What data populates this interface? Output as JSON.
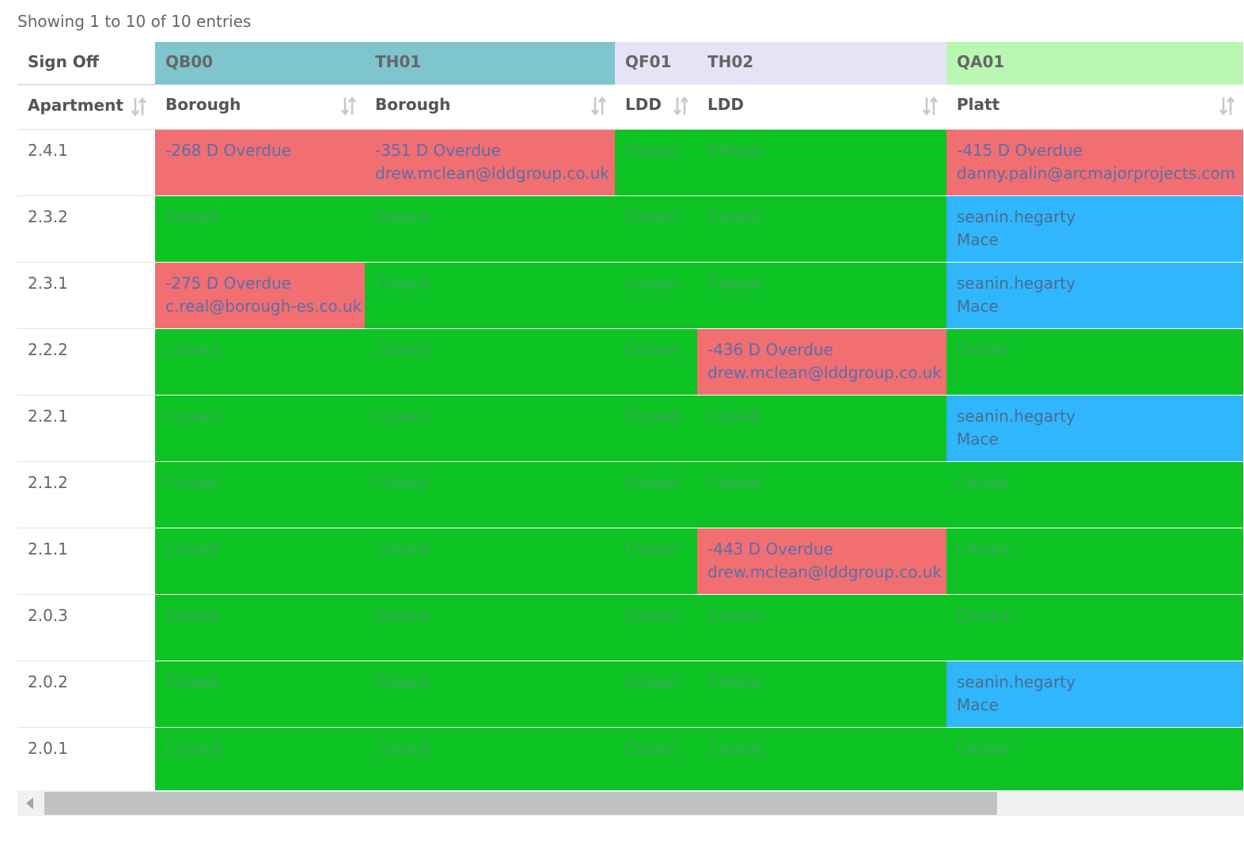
{
  "info": "Showing 1 to 10 of 10 entries",
  "groups": {
    "signoff": "Sign Off",
    "qb00": "QB00",
    "th01": "TH01",
    "qf01": "QF01",
    "th02": "TH02",
    "qa01": "QA01"
  },
  "columns": [
    "Apartment",
    "Borough",
    "Borough",
    "LDD",
    "LDD",
    "Platt"
  ],
  "colors": {
    "closed": "#0ec424",
    "overdue": "#f16e71",
    "pending": "#30b6fd",
    "group_teal": "#7ec5cd",
    "group_lavender": "#e4e4f6",
    "group_green": "#baf7b3"
  },
  "rows": [
    {
      "apt": "2.4.1",
      "cells": [
        {
          "status": "overdue",
          "lines": [
            "-268 D Overdue"
          ]
        },
        {
          "status": "overdue",
          "lines": [
            "-351 D Overdue",
            "drew.mclean@lddgroup.co.uk"
          ]
        },
        {
          "status": "closed",
          "lines": [
            "Closed"
          ]
        },
        {
          "status": "closed",
          "lines": [
            "Closed"
          ]
        },
        {
          "status": "overdue",
          "lines": [
            "-415 D Overdue",
            "danny.palin@arcmajorprojects.com"
          ]
        }
      ]
    },
    {
      "apt": "2.3.2",
      "cells": [
        {
          "status": "closed",
          "lines": [
            "Closed"
          ]
        },
        {
          "status": "closed",
          "lines": [
            "Closed"
          ]
        },
        {
          "status": "closed",
          "lines": [
            "Closed"
          ]
        },
        {
          "status": "closed",
          "lines": [
            "Closed"
          ]
        },
        {
          "status": "pending",
          "lines": [
            "seanin.hegarty",
            "Mace"
          ]
        }
      ]
    },
    {
      "apt": "2.3.1",
      "cells": [
        {
          "status": "overdue",
          "lines": [
            "-275 D Overdue",
            "c.real@borough-es.co.uk"
          ]
        },
        {
          "status": "closed",
          "lines": [
            "Closed"
          ]
        },
        {
          "status": "closed",
          "lines": [
            "Closed"
          ]
        },
        {
          "status": "closed",
          "lines": [
            "Closed"
          ]
        },
        {
          "status": "pending",
          "lines": [
            "seanin.hegarty",
            "Mace"
          ]
        }
      ]
    },
    {
      "apt": "2.2.2",
      "cells": [
        {
          "status": "closed",
          "lines": [
            "Closed"
          ]
        },
        {
          "status": "closed",
          "lines": [
            "Closed"
          ]
        },
        {
          "status": "closed",
          "lines": [
            "Closed"
          ]
        },
        {
          "status": "overdue",
          "lines": [
            "-436 D Overdue",
            "drew.mclean@lddgroup.co.uk"
          ]
        },
        {
          "status": "closed",
          "lines": [
            "Closed"
          ]
        }
      ]
    },
    {
      "apt": "2.2.1",
      "cells": [
        {
          "status": "closed",
          "lines": [
            "Closed"
          ]
        },
        {
          "status": "closed",
          "lines": [
            "Closed"
          ]
        },
        {
          "status": "closed",
          "lines": [
            "Closed"
          ]
        },
        {
          "status": "closed",
          "lines": [
            "Closed"
          ]
        },
        {
          "status": "pending",
          "lines": [
            "seanin.hegarty",
            "Mace"
          ]
        }
      ]
    },
    {
      "apt": "2.1.2",
      "cells": [
        {
          "status": "closed",
          "lines": [
            "Closed"
          ]
        },
        {
          "status": "closed",
          "lines": [
            "Closed"
          ]
        },
        {
          "status": "closed",
          "lines": [
            "Closed"
          ]
        },
        {
          "status": "closed",
          "lines": [
            "Closed"
          ]
        },
        {
          "status": "closed",
          "lines": [
            "Closed"
          ]
        }
      ]
    },
    {
      "apt": "2.1.1",
      "cells": [
        {
          "status": "closed",
          "lines": [
            "Closed"
          ]
        },
        {
          "status": "closed",
          "lines": [
            "Closed"
          ]
        },
        {
          "status": "closed",
          "lines": [
            "Closed"
          ]
        },
        {
          "status": "overdue",
          "lines": [
            "-443 D Overdue",
            "drew.mclean@lddgroup.co.uk"
          ]
        },
        {
          "status": "closed",
          "lines": [
            "Closed"
          ]
        }
      ]
    },
    {
      "apt": "2.0.3",
      "cells": [
        {
          "status": "closed",
          "lines": [
            "Closed"
          ]
        },
        {
          "status": "closed",
          "lines": [
            "Closed"
          ]
        },
        {
          "status": "closed",
          "lines": [
            "Closed"
          ]
        },
        {
          "status": "closed",
          "lines": [
            "Closed"
          ]
        },
        {
          "status": "closed",
          "lines": [
            "Closed"
          ]
        }
      ]
    },
    {
      "apt": "2.0.2",
      "cells": [
        {
          "status": "closed",
          "lines": [
            "Closed"
          ]
        },
        {
          "status": "closed",
          "lines": [
            "Closed"
          ]
        },
        {
          "status": "closed",
          "lines": [
            "Closed"
          ]
        },
        {
          "status": "closed",
          "lines": [
            "Closed"
          ]
        },
        {
          "status": "pending",
          "lines": [
            "seanin.hegarty",
            "Mace"
          ]
        }
      ]
    },
    {
      "apt": "2.0.1",
      "cells": [
        {
          "status": "closed",
          "lines": [
            "Closed"
          ]
        },
        {
          "status": "closed",
          "lines": [
            "Closed"
          ]
        },
        {
          "status": "closed",
          "lines": [
            "Closed"
          ]
        },
        {
          "status": "closed",
          "lines": [
            "Closed"
          ]
        },
        {
          "status": "closed",
          "lines": [
            "Closed"
          ]
        }
      ]
    }
  ],
  "icons": {
    "sort": "sort-both-icon",
    "scroll_left": "scroll-left-arrow-icon"
  }
}
